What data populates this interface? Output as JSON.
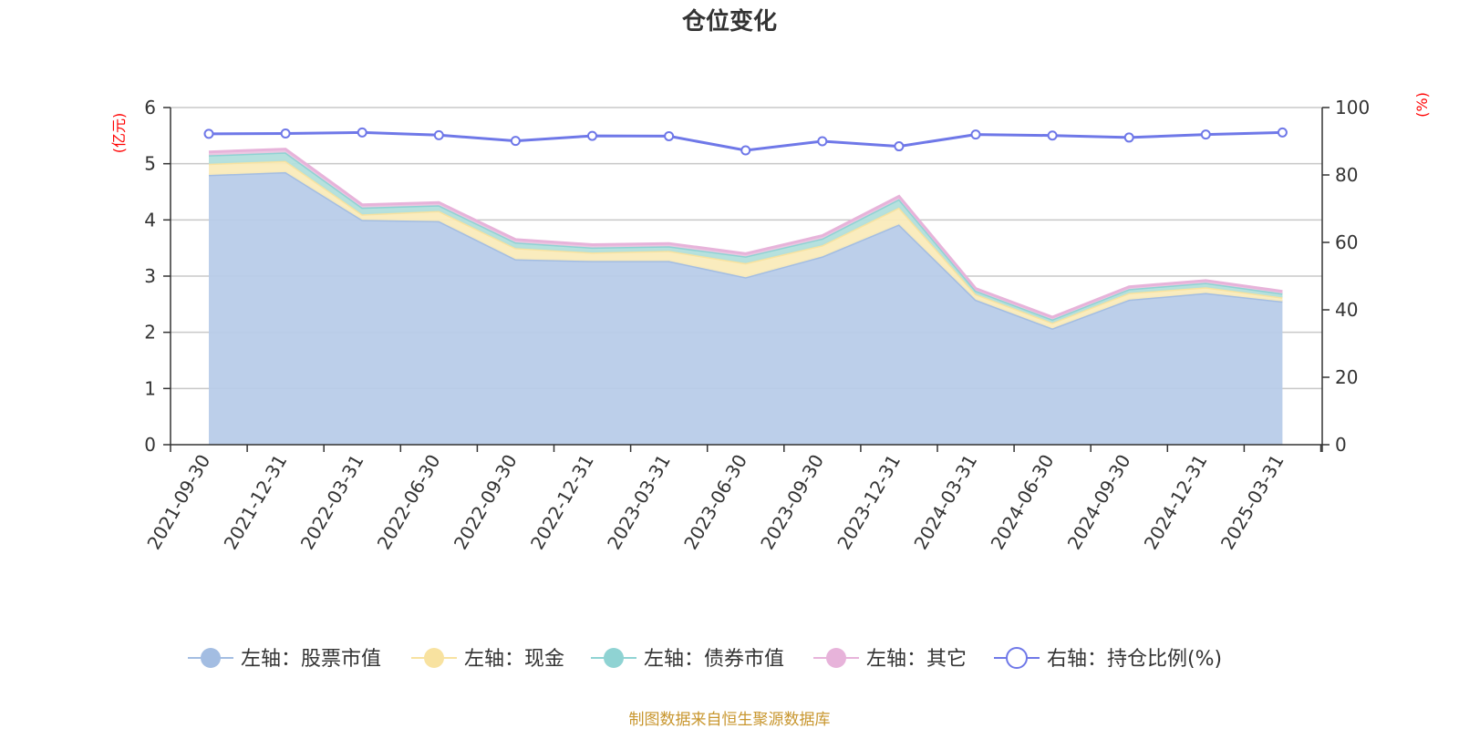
{
  "chart_data": {
    "type": "area",
    "title": "仓位变化",
    "left_axis_unit": "(亿元)",
    "right_axis_unit": "(%)",
    "left_ylim": [
      0,
      6
    ],
    "left_ticks": [
      "0",
      "1",
      "2",
      "3",
      "4",
      "5",
      "6"
    ],
    "right_ylim": [
      0,
      100
    ],
    "right_ticks": [
      "0",
      "20",
      "40",
      "60",
      "80",
      "100"
    ],
    "grid": true,
    "legend_position": "bottom",
    "categories": [
      "2021-09-30",
      "2021-12-31",
      "2022-03-31",
      "2022-06-30",
      "2022-09-30",
      "2022-12-31",
      "2023-03-31",
      "2023-06-30",
      "2023-09-30",
      "2023-12-31",
      "2024-03-31",
      "2024-06-30",
      "2024-09-30",
      "2024-12-31",
      "2025-03-31"
    ],
    "series": [
      {
        "name": "左轴：股票市值",
        "axis": "left",
        "stacked": true,
        "color": "#a3bde2",
        "fill": "#b8cce9",
        "values": [
          4.8,
          4.85,
          4.0,
          3.98,
          3.3,
          3.27,
          3.27,
          2.98,
          3.35,
          3.92,
          2.58,
          2.07,
          2.58,
          2.7,
          2.55
        ]
      },
      {
        "name": "左轴：现金",
        "axis": "left",
        "stacked": true,
        "color": "#f8e2a0",
        "fill": "#faebbb",
        "values": [
          0.2,
          0.2,
          0.1,
          0.18,
          0.2,
          0.15,
          0.18,
          0.25,
          0.2,
          0.3,
          0.1,
          0.1,
          0.12,
          0.1,
          0.07
        ]
      },
      {
        "name": "左轴：债券市值",
        "axis": "left",
        "stacked": true,
        "color": "#8fd3d3",
        "fill": "#b2dfdc",
        "values": [
          0.15,
          0.15,
          0.12,
          0.1,
          0.1,
          0.09,
          0.08,
          0.12,
          0.12,
          0.15,
          0.06,
          0.06,
          0.07,
          0.08,
          0.07
        ]
      },
      {
        "name": "左轴：其它",
        "axis": "left",
        "stacked": true,
        "color": "#e7b3da",
        "fill": "#edc7e2",
        "values": [
          0.06,
          0.06,
          0.05,
          0.05,
          0.05,
          0.05,
          0.05,
          0.05,
          0.05,
          0.05,
          0.04,
          0.04,
          0.04,
          0.04,
          0.04
        ]
      },
      {
        "name": "右轴：持仓比例(%)",
        "axis": "right",
        "type": "line",
        "color": "#6f78e8",
        "values": [
          92.2,
          92.3,
          92.6,
          91.8,
          90.1,
          91.6,
          91.5,
          87.3,
          90.0,
          88.5,
          92.0,
          91.7,
          91.1,
          92.0,
          92.6
        ]
      }
    ],
    "source_note": "制图数据来自恒生聚源数据库"
  }
}
